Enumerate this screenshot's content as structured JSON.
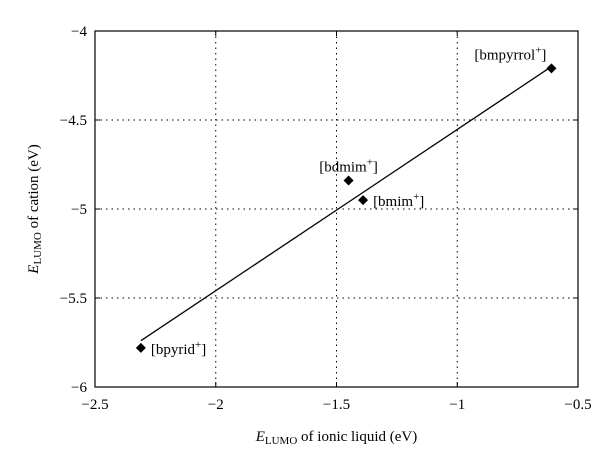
{
  "chart_data": {
    "type": "scatter",
    "xlabel": {
      "main": "E",
      "sub": "LUMO",
      "rest": " of ionic liquid (eV)"
    },
    "ylabel": {
      "main": "E",
      "sub": "LUMO",
      "rest": " of cation (eV)"
    },
    "xlim": [
      -2.5,
      -0.5
    ],
    "ylim": [
      -6,
      -4
    ],
    "xticks": [
      -2.5,
      -2,
      -1.5,
      -1,
      -0.5
    ],
    "yticks": [
      -6,
      -5.5,
      -5,
      -4.5,
      -4
    ],
    "xtick_labels": [
      "−2.5",
      "−2",
      "−1.5",
      "−1",
      "−0.5"
    ],
    "ytick_labels": [
      "−6",
      "−5.5",
      "−5",
      "−4.5",
      "−4"
    ],
    "grid": true,
    "points": [
      {
        "label": "bpyrid",
        "sup": "+",
        "x": -2.31,
        "y": -5.78,
        "label_pos": "right"
      },
      {
        "label": "bdmim",
        "sup": "+",
        "x": -1.45,
        "y": -4.84,
        "label_pos": "above"
      },
      {
        "label": "bmim",
        "sup": "+",
        "x": -1.39,
        "y": -4.95,
        "label_pos": "right"
      },
      {
        "label": "bmpyrrol",
        "sup": "+",
        "x": -0.61,
        "y": -4.21,
        "label_pos": "above-left"
      }
    ],
    "fit_line": {
      "x": [
        -2.31,
        -0.61
      ],
      "y": [
        -5.74,
        -4.2
      ]
    }
  }
}
